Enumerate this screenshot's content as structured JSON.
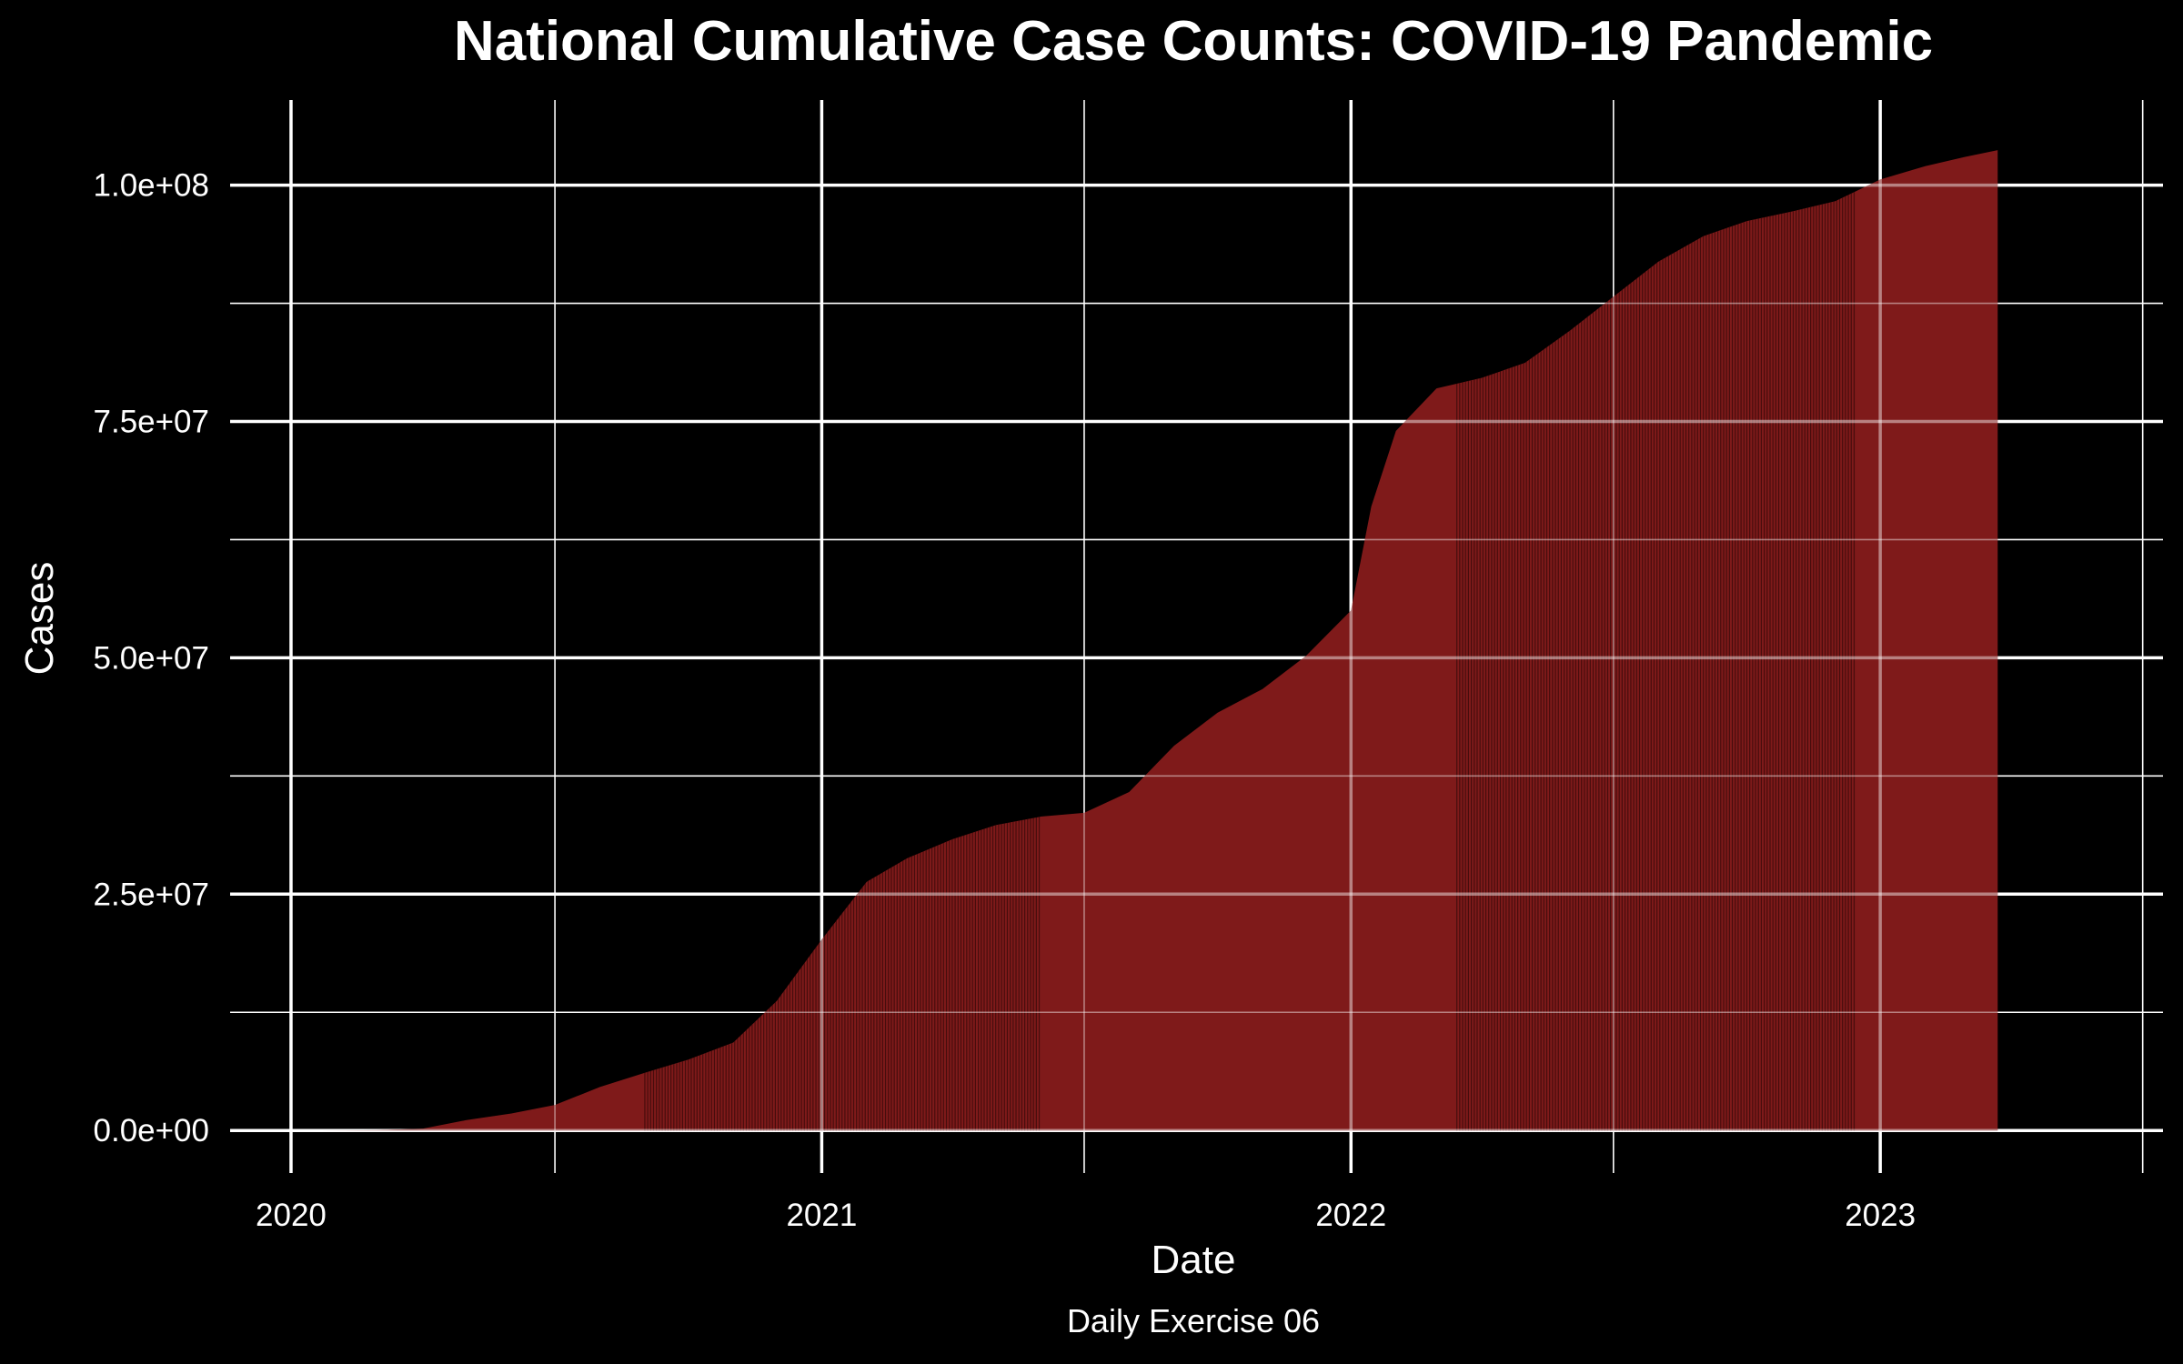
{
  "chart_data": {
    "type": "area",
    "title": "National Cumulative Case Counts: COVID-19 Pandemic",
    "xlabel": "Date",
    "ylabel": "Cases",
    "caption": "Daily Exercise 06",
    "x_ticks": [
      "2020",
      "2021",
      "2022",
      "2023"
    ],
    "y_ticks": [
      "0.0e+00",
      "2.5e+07",
      "5.0e+07",
      "7.5e+07",
      "1.0e+08"
    ],
    "xlim": [
      "2019-11-20",
      "2023-07-15"
    ],
    "ylim": [
      -4500000,
      109000000
    ],
    "grid": true,
    "legend": "none",
    "fill_color": "#7f1a1a",
    "stripe_color": "#3a0a0a",
    "background_color": "#000000",
    "text_color": "#ffffff",
    "grid_color": "#ffffff",
    "striped_ranges": [
      [
        "2020-09-01",
        "2021-06-01"
      ],
      [
        "2022-03-15",
        "2022-12-15"
      ]
    ],
    "series": [
      {
        "x": [
          "2020-01-21",
          "2020-03-01",
          "2020-04-01",
          "2020-05-01",
          "2020-06-01",
          "2020-07-01",
          "2020-08-01",
          "2020-09-01",
          "2020-10-01",
          "2020-11-01",
          "2020-12-01",
          "2021-01-01",
          "2021-02-01",
          "2021-03-01",
          "2021-04-01",
          "2021-05-01",
          "2021-06-01",
          "2021-07-01",
          "2021-08-01",
          "2021-09-01",
          "2021-10-01",
          "2021-11-01",
          "2021-12-01",
          "2022-01-01",
          "2022-01-15",
          "2022-02-01",
          "2022-03-01",
          "2022-04-01",
          "2022-05-01",
          "2022-06-01",
          "2022-07-01",
          "2022-08-01",
          "2022-09-01",
          "2022-10-01",
          "2022-11-01",
          "2022-12-01",
          "2023-01-01",
          "2023-02-01",
          "2023-03-01",
          "2023-03-23"
        ],
        "y": [
          0,
          30000,
          200000,
          1100000,
          1800000,
          2700000,
          4600000,
          6100000,
          7500000,
          9300000,
          13700000,
          20200000,
          26300000,
          28800000,
          30800000,
          32300000,
          33200000,
          33600000,
          35800000,
          40700000,
          44200000,
          46700000,
          50200000,
          55000000,
          66000000,
          74000000,
          78500000,
          79600000,
          81200000,
          84600000,
          88200000,
          91900000,
          94600000,
          96200000,
          97200000,
          98300000,
          100600000,
          102000000,
          103000000,
          103700000
        ]
      }
    ]
  }
}
